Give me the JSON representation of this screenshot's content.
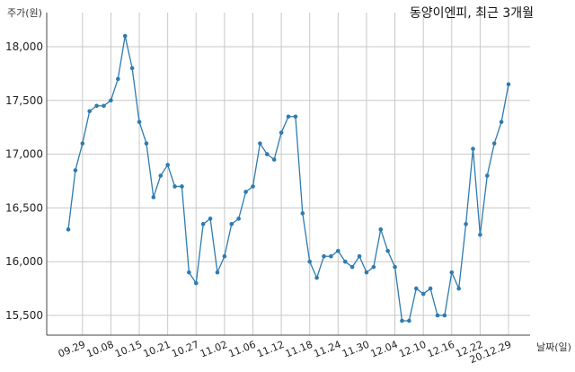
{
  "chart_data": {
    "type": "line",
    "title": "동양이엔피, 최근 3개월",
    "ylabel": "주가(원)",
    "xlabel": "날짜(일)",
    "ylim": [
      15300,
      18250
    ],
    "yticks": [
      15500,
      16000,
      16500,
      17000,
      17500,
      18000
    ],
    "ytick_labels": [
      "15,500",
      "16,000",
      "16,500",
      "17,000",
      "17,500",
      "18,000"
    ],
    "xtick_labels": [
      "09.29",
      "10.08",
      "10.15",
      "10.21",
      "10.27",
      "11.02",
      "11.06",
      "11.12",
      "11.18",
      "11.24",
      "11.30",
      "12.04",
      "12.10",
      "12.16",
      "12.22",
      "20.12.29"
    ],
    "xtick_indices": [
      2,
      6,
      10,
      14,
      18,
      22,
      26,
      30,
      34,
      38,
      42,
      46,
      50,
      54,
      58,
      62
    ],
    "grid": true,
    "color": "#2e7bb0",
    "values": [
      16300,
      16850,
      17100,
      17400,
      17450,
      17450,
      17500,
      17700,
      18100,
      17800,
      17300,
      17100,
      16600,
      16800,
      16900,
      16700,
      16700,
      15900,
      15800,
      16350,
      16400,
      15900,
      16050,
      16350,
      16400,
      16650,
      16700,
      17100,
      17000,
      16950,
      17200,
      17350,
      17350,
      16450,
      16000,
      15850,
      16050,
      16050,
      16100,
      16000,
      15950,
      16050,
      15900,
      15950,
      16300,
      16100,
      15950,
      15450,
      15450,
      15750,
      15700,
      15750,
      15500,
      15500,
      15900,
      15750,
      16350,
      17050,
      16250,
      16800,
      17100,
      17300,
      17650
    ]
  }
}
